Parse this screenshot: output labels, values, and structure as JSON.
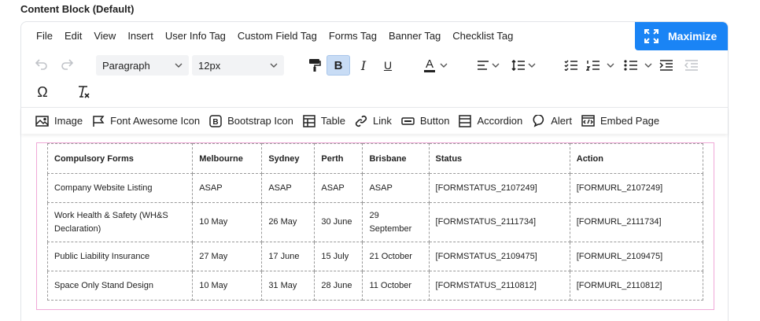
{
  "block_title": "Content Block (Default)",
  "menu": [
    "File",
    "Edit",
    "View",
    "Insert",
    "User Info Tag",
    "Custom Field Tag",
    "Forms Tag",
    "Banner Tag",
    "Checklist Tag"
  ],
  "maximize_label": "Maximize",
  "toolbar": {
    "block_format": "Paragraph",
    "font_size": "12px",
    "bold": "B",
    "italic": "I",
    "underline": "U",
    "font_color_letter": "A",
    "special_char": "Ω",
    "accent_color": "#1a84f5",
    "active_bg": "#c8dcf5"
  },
  "insert_items": [
    {
      "label": "Image",
      "icon": "image-icon"
    },
    {
      "label": "Font Awesome Icon",
      "icon": "flag-icon"
    },
    {
      "label": "Bootstrap Icon",
      "icon": "bootstrap-icon"
    },
    {
      "label": "Table",
      "icon": "table-icon"
    },
    {
      "label": "Link",
      "icon": "link-icon"
    },
    {
      "label": "Button",
      "icon": "button-icon"
    },
    {
      "label": "Accordion",
      "icon": "accordion-icon"
    },
    {
      "label": "Alert",
      "icon": "speech-bubble-icon"
    },
    {
      "label": "Embed Page",
      "icon": "embed-icon"
    }
  ],
  "table": {
    "headers": [
      "Compulsory Forms",
      "Melbourne",
      "Sydney",
      "Perth",
      "Brisbane",
      "Status",
      "Action"
    ],
    "rows": [
      [
        "Company Website Listing",
        "ASAP",
        "ASAP",
        "ASAP",
        "ASAP",
        "[FORMSTATUS_2107249]",
        "[FORMURL_2107249]"
      ],
      [
        "Work Health & Safety (WH&S Declaration)",
        "10 May",
        "26 May",
        "30 June",
        "29 September",
        "[FORMSTATUS_2111734]",
        "[FORMURL_2111734]"
      ],
      [
        "Public Liability Insurance",
        "27 May",
        "17 June",
        "15 July",
        "21 October",
        "[FORMSTATUS_2109475]",
        "[FORMURL_2109475]"
      ],
      [
        "Space Only Stand Design",
        "10 May",
        "31 May",
        "28 June",
        "11 October",
        "[FORMSTATUS_2110812]",
        "[FORMURL_2110812]"
      ]
    ]
  }
}
